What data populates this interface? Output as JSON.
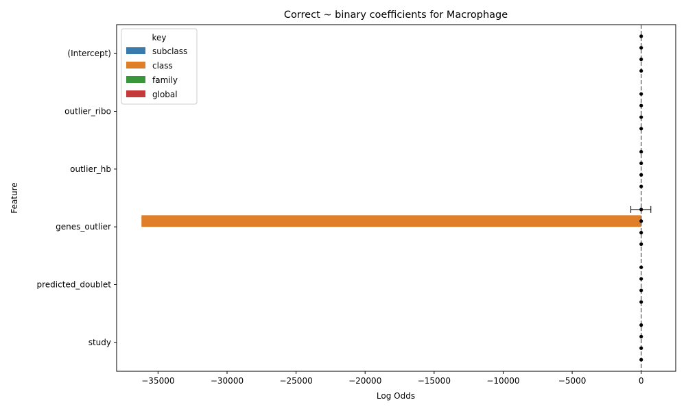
{
  "chart_data": {
    "type": "bar",
    "orientation": "horizontal",
    "title": "Correct ~ binary coefficients for Macrophage",
    "xlabel": "Log Odds",
    "ylabel": "Feature",
    "categories": [
      "(Intercept)",
      "outlier_ribo",
      "outlier_hb",
      "genes_outlier",
      "predicted_doublet",
      "study"
    ],
    "xlim": [
      -38000,
      2500
    ],
    "x_ticks": [
      -35000,
      -30000,
      -25000,
      -20000,
      -15000,
      -10000,
      -5000,
      0
    ],
    "x_tick_labels": [
      "−35000",
      "−30000",
      "−25000",
      "−20000",
      "−15000",
      "−10000",
      "−5000",
      "0"
    ],
    "legend_title": "key",
    "legend_position": "upper-left",
    "reference_line": 0,
    "grid": false,
    "series": [
      {
        "name": "subclass",
        "color": "#3a7bad",
        "values": [
          0,
          0,
          0,
          0,
          0,
          0
        ],
        "err_low": [
          0,
          0,
          0,
          -750,
          0,
          0
        ],
        "err_high": [
          0,
          0,
          0,
          700,
          0,
          0
        ]
      },
      {
        "name": "class",
        "color": "#e07f2a",
        "values": [
          0,
          0,
          0,
          -36200,
          0,
          0
        ],
        "err_low": [
          0,
          0,
          0,
          0,
          0,
          0
        ],
        "err_high": [
          0,
          0,
          0,
          0,
          0,
          0
        ]
      },
      {
        "name": "family",
        "color": "#3a963a",
        "values": [
          0,
          0,
          0,
          0,
          0,
          0
        ],
        "err_low": [
          0,
          0,
          0,
          0,
          0,
          0
        ],
        "err_high": [
          0,
          0,
          0,
          0,
          0,
          0
        ]
      },
      {
        "name": "global",
        "color": "#c43a3a",
        "values": [
          0,
          0,
          0,
          0,
          0,
          0
        ],
        "err_low": [
          0,
          0,
          0,
          0,
          0,
          0
        ],
        "err_high": [
          0,
          0,
          0,
          0,
          0,
          0
        ]
      }
    ]
  }
}
